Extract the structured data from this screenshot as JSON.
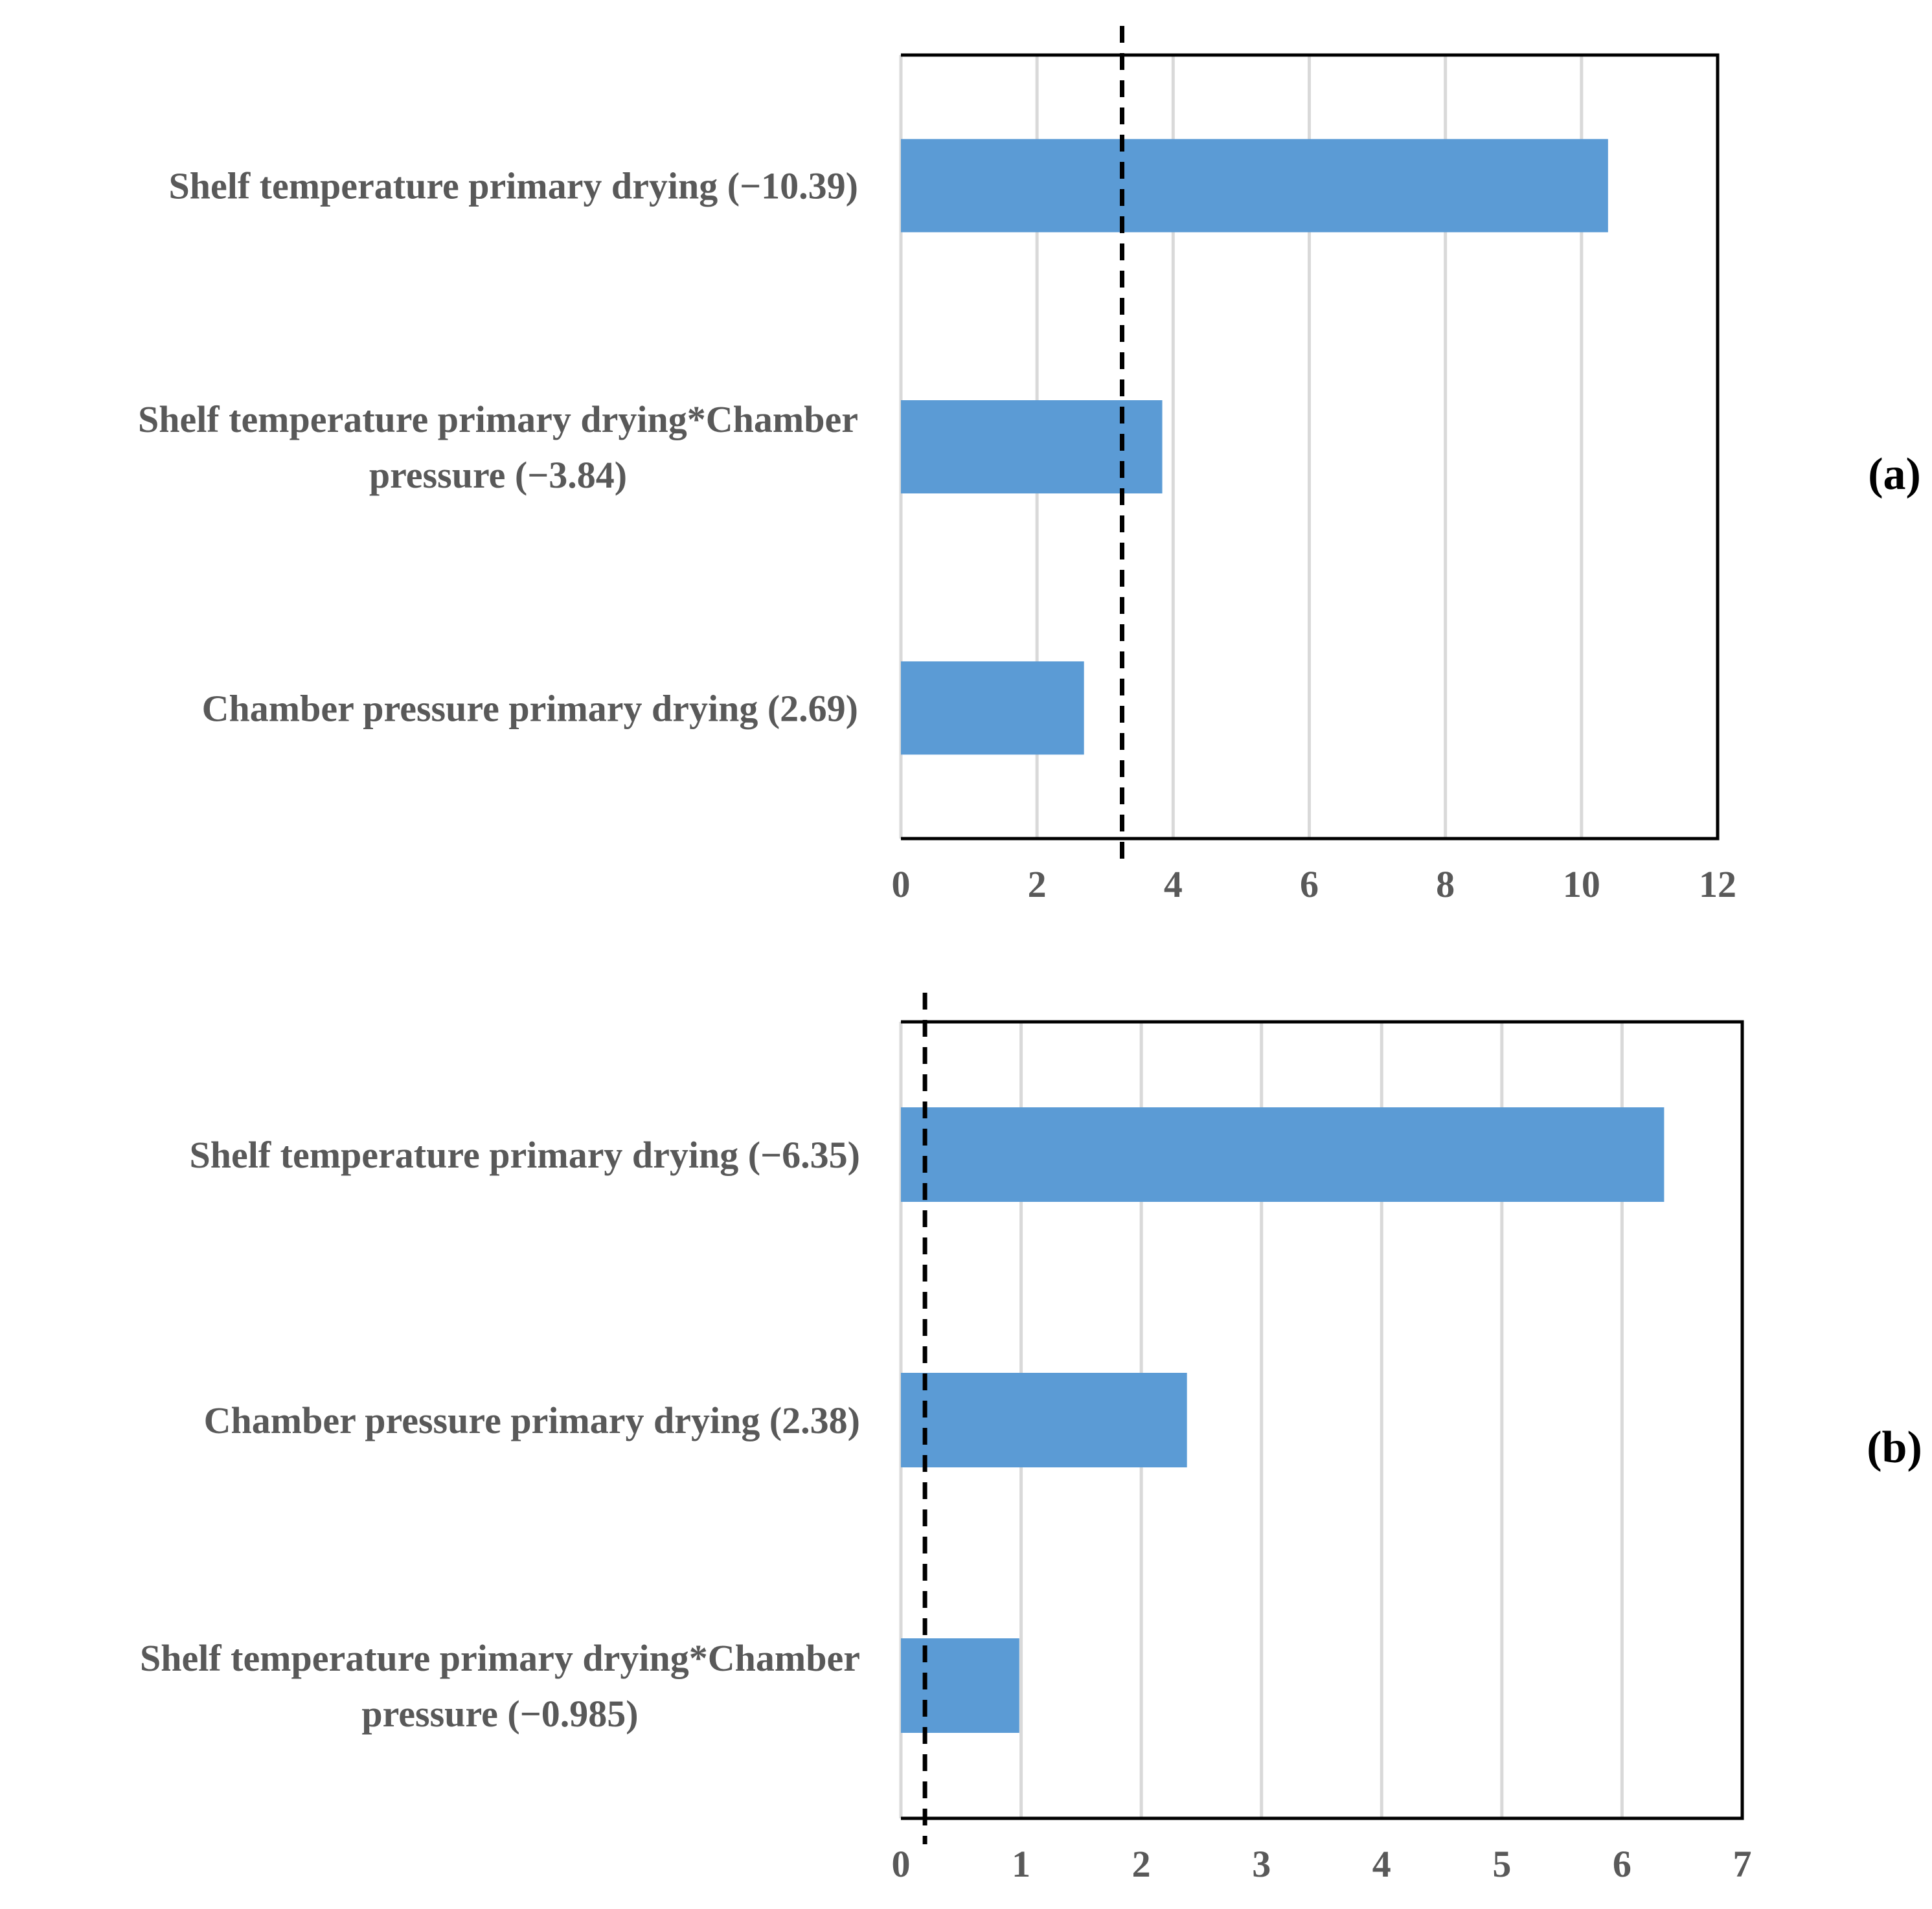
{
  "chart_data": [
    {
      "type": "bar",
      "orientation": "horizontal",
      "panel_label": "(a)",
      "categories": [
        [
          "Shelf temperature primary drying (−10.39)"
        ],
        [
          "Shelf temperature primary drying*Chamber",
          "pressure (−3.84)"
        ],
        [
          "Chamber pressure primary drying  (2.69)"
        ]
      ],
      "values": [
        10.39,
        3.84,
        2.69
      ],
      "reference_line": 3.25,
      "xlim": [
        0,
        12
      ],
      "xticks": [
        0,
        2,
        4,
        6,
        8,
        10,
        12
      ],
      "grid": true,
      "bar_color": "#5b9bd5",
      "title": "",
      "xlabel": "",
      "ylabel": ""
    },
    {
      "type": "bar",
      "orientation": "horizontal",
      "panel_label": "(b)",
      "categories": [
        [
          "Shelf temperature primary drying (−6.35)"
        ],
        [
          "Chamber pressure primary drying  (2.38)"
        ],
        [
          "Shelf temperature primary drying*Chamber",
          "pressure (−0.985)"
        ]
      ],
      "values": [
        6.35,
        2.38,
        0.985
      ],
      "reference_line": 0.2,
      "xlim": [
        0,
        7
      ],
      "xticks": [
        0,
        1,
        2,
        3,
        4,
        5,
        6,
        7
      ],
      "grid": true,
      "bar_color": "#5b9bd5",
      "title": "",
      "xlabel": "",
      "ylabel": ""
    }
  ]
}
